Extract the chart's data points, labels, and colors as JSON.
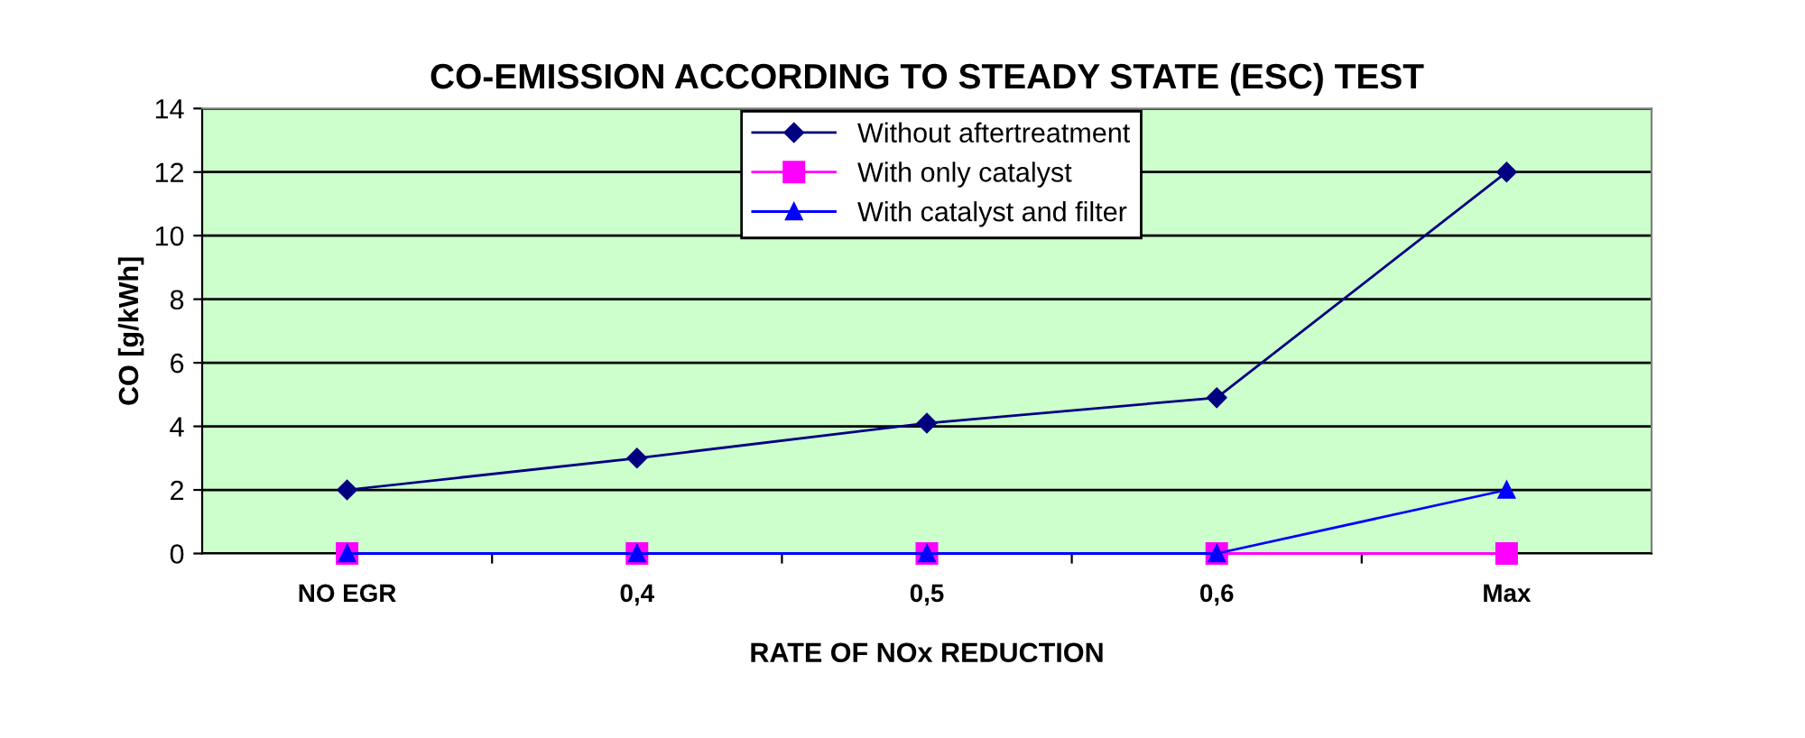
{
  "chart_data": {
    "type": "line",
    "title": "CO-EMISSION ACCORDING TO STEADY STATE (ESC) TEST",
    "xlabel": "RATE OF NOx REDUCTION",
    "ylabel": "CO [g/kWh]",
    "categories": [
      "NO EGR",
      "0,4",
      "0,5",
      "0,6",
      "Max"
    ],
    "series": [
      {
        "name": "Without aftertreatment",
        "color": "#000080",
        "marker": "diamond",
        "values": [
          2,
          3,
          4.1,
          4.9,
          12
        ]
      },
      {
        "name": "With only catalyst",
        "color": "#ff00ff",
        "marker": "square",
        "values": [
          0,
          0,
          0,
          0,
          0
        ]
      },
      {
        "name": "With catalyst and filter",
        "color": "#0000ff",
        "marker": "triangle",
        "values": [
          0,
          0,
          0,
          0,
          2
        ]
      }
    ],
    "ylim": [
      0,
      14
    ],
    "yticks": [
      0,
      2,
      4,
      6,
      8,
      10,
      12,
      14
    ],
    "grid": "y",
    "legend": "top"
  }
}
